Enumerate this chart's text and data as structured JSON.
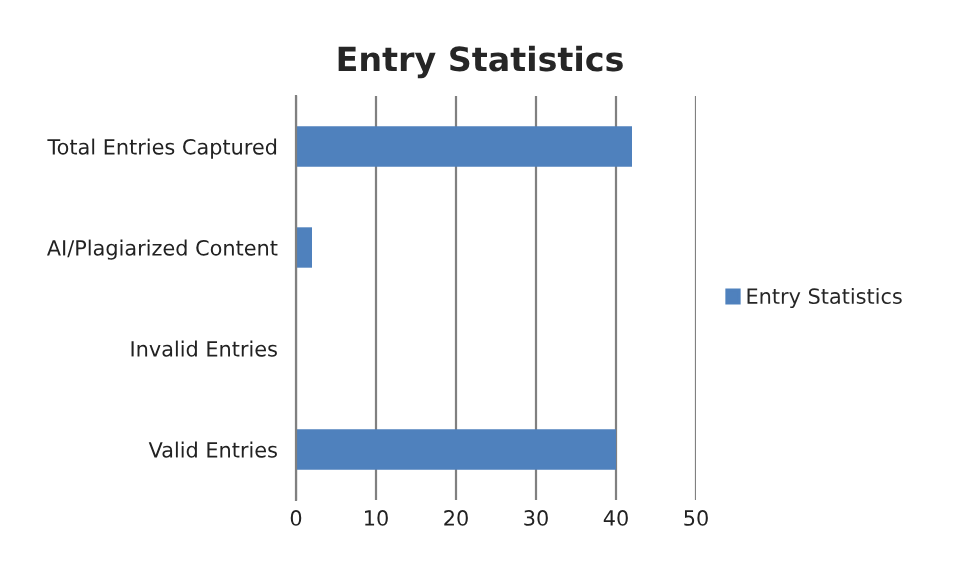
{
  "chart_data": {
    "type": "bar",
    "orientation": "horizontal",
    "title": "Entry Statistics",
    "categories": [
      "Total Entries Captured",
      "AI/Plagiarized Content",
      "Invalid Entries",
      "Valid Entries"
    ],
    "series": [
      {
        "name": "Entry Statistics",
        "color": "#4f81bd",
        "values": [
          42,
          2,
          0,
          40
        ]
      }
    ],
    "xlim": [
      0,
      50
    ],
    "xticks": [
      0,
      10,
      20,
      30,
      40,
      50
    ],
    "grid": "x",
    "legend": "right"
  }
}
